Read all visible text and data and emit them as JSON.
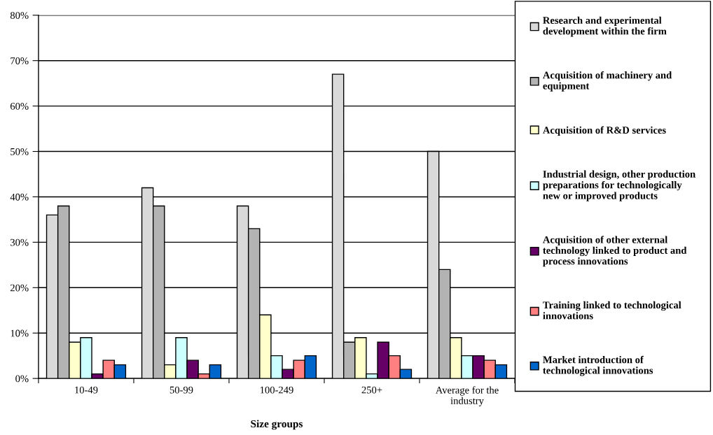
{
  "chart_data": {
    "type": "bar",
    "xlabel": "Size groups",
    "categories": [
      "10-49",
      "50-99",
      "100-249",
      "250+",
      "Average for the\nindustry"
    ],
    "series": [
      {
        "name": "Research and experimental\ndevelopment within the firm",
        "color": "#d9d9d9",
        "values": [
          36,
          42,
          38,
          67,
          50
        ]
      },
      {
        "name": "Acquisition of machinery and\nequipment",
        "color": "#b3b3b3",
        "values": [
          38,
          38,
          33,
          8,
          24
        ]
      },
      {
        "name": "Acquisition of R&D services",
        "color": "#ffffcc",
        "values": [
          8,
          3,
          14,
          9,
          9
        ]
      },
      {
        "name": "Industrial design, other production\npreparations for technologically\nnew or improved products",
        "color": "#ccffff",
        "values": [
          9,
          9,
          5,
          1,
          5
        ]
      },
      {
        "name": "Acquisition of other external\ntechnology linked to product and\nprocess innovations",
        "color": "#660066",
        "values": [
          1,
          4,
          2,
          8,
          5
        ]
      },
      {
        "name": "Training linked to technological\ninnovations",
        "color": "#ff8080",
        "values": [
          4,
          1,
          4,
          5,
          4
        ]
      },
      {
        "name": "Market introduction of\ntechnological innovations",
        "color": "#0066cc",
        "values": [
          3,
          3,
          5,
          2,
          3
        ]
      }
    ],
    "ylim": [
      0,
      80
    ],
    "yticks": [
      {
        "value": 0,
        "label": "0%"
      },
      {
        "value": 10,
        "label": "10%"
      },
      {
        "value": 20,
        "label": "20%"
      },
      {
        "value": 30,
        "label": "30%"
      },
      {
        "value": 40,
        "label": "40%"
      },
      {
        "value": 50,
        "label": "50%"
      },
      {
        "value": 60,
        "label": "60%"
      },
      {
        "value": 70,
        "label": "70%"
      },
      {
        "value": 80,
        "label": "80%"
      }
    ],
    "grid": "y",
    "legend": "right"
  }
}
